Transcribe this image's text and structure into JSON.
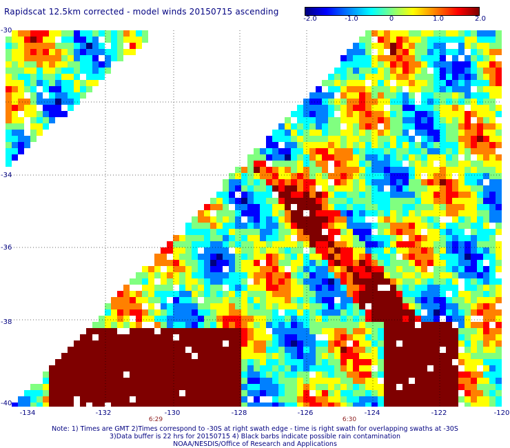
{
  "title": "Rapidscat 12.5km corrected - model winds 20150715 ascending",
  "colorbar": {
    "colors": [
      "#00007f",
      "#0000ff",
      "#0080ff",
      "#00ffff",
      "#80ff80",
      "#ffff00",
      "#ff8000",
      "#ff0000",
      "#7f0000"
    ],
    "ticks": [
      "-2.0",
      "-1.0",
      "0",
      "1.0",
      "2.0"
    ]
  },
  "map": {
    "y_labels": [
      "-30",
      "-34",
      "-36",
      "-38",
      "-40"
    ],
    "x_labels": [
      "-134",
      "-132",
      "-130",
      "-128",
      "-126",
      "-124",
      "-122",
      "-120"
    ],
    "time_labels": [
      "6:29",
      "6:30"
    ],
    "land_color": "#8b0000"
  },
  "notes": {
    "line1": "Note: 1) Times are GMT 2)Times correspond to -30S at right swath edge - time is right swath for overlapping swaths at -30S",
    "line2": "3)Data buffer is 22 hrs for 20150715 4) Black barbs indicate possible rain contamination",
    "line3": "NOAA/NESDIS/Office of Research and Applications"
  }
}
